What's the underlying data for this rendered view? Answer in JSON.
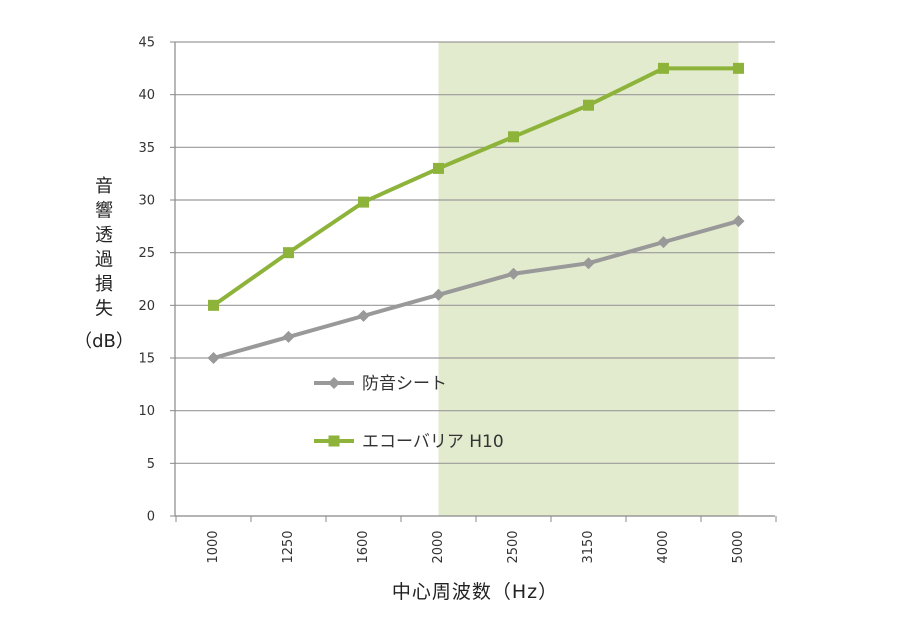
{
  "chart_data": {
    "type": "line",
    "categories": [
      "1000",
      "1250",
      "1600",
      "2000",
      "2500",
      "3150",
      "4000",
      "5000"
    ],
    "series": [
      {
        "name": "防音シート",
        "color": "#999999",
        "marker": "diamond",
        "values": [
          15,
          17,
          19,
          21,
          23,
          24,
          26,
          28
        ]
      },
      {
        "name": "エコーバリア H10",
        "color": "#8db33a",
        "marker": "square",
        "values": [
          20,
          25,
          29.8,
          33,
          36,
          39,
          42.5,
          42.5
        ]
      }
    ],
    "xlabel": "中心周波数（Hz）",
    "ylabel": [
      "音",
      "響",
      "透",
      "過",
      "損",
      "失",
      "（dB）"
    ],
    "ylim": [
      0,
      45
    ],
    "yticks": [
      0,
      5,
      10,
      15,
      20,
      25,
      30,
      35,
      40,
      45
    ],
    "highlight": {
      "from_category": "2000",
      "to_category": "5000",
      "color": "#e3ebcf"
    },
    "grid": true,
    "legend": "inside-bottom-center"
  }
}
